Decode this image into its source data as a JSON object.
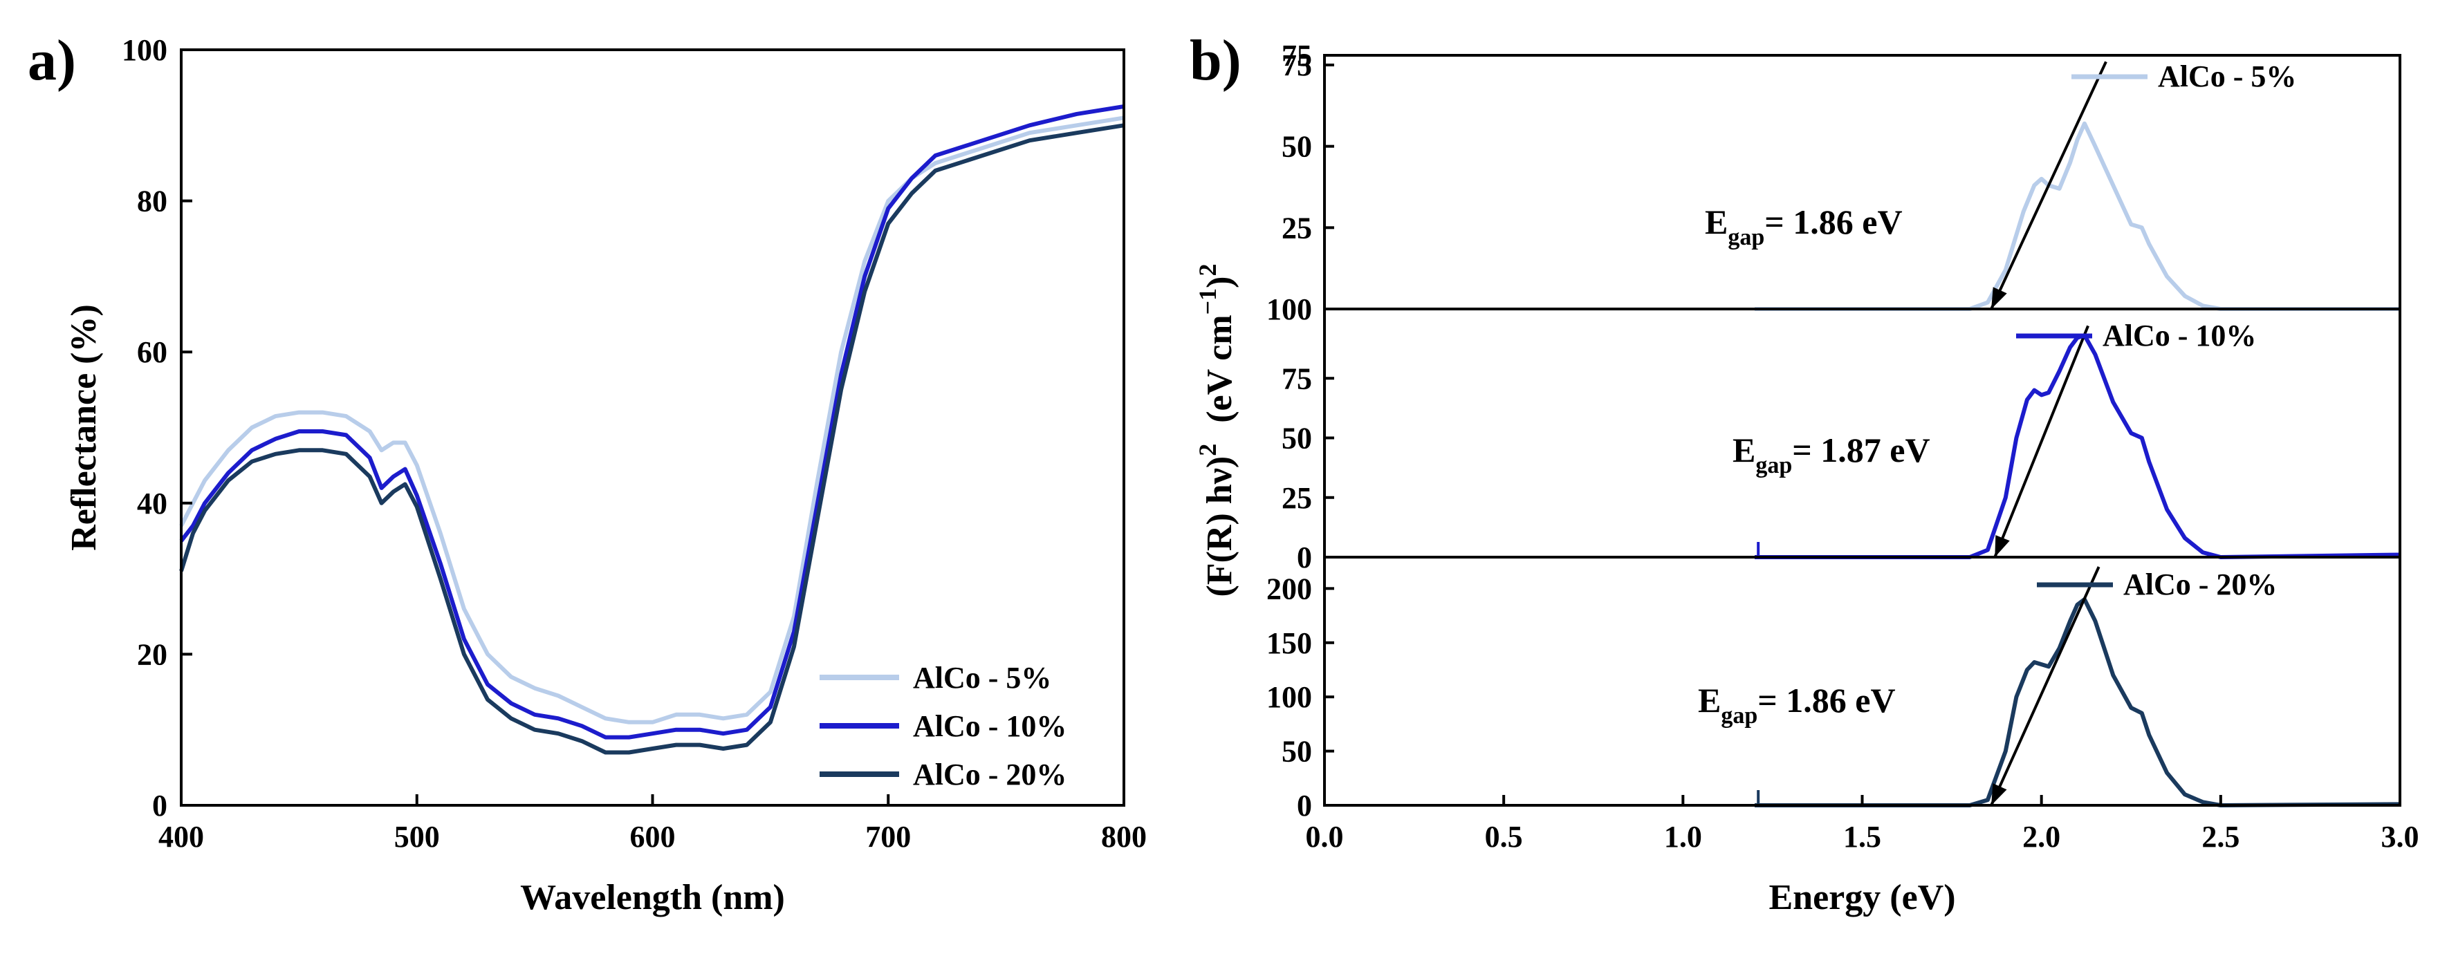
{
  "chart_data": [
    {
      "type": "line",
      "panel_label": "a)",
      "xlabel": "Wavelength (nm)",
      "ylabel": "Reflectance (%)",
      "xlim": [
        400,
        800
      ],
      "ylim": [
        0,
        100
      ],
      "xticks": [
        400,
        500,
        600,
        700,
        800
      ],
      "yticks": [
        0,
        20,
        40,
        60,
        80,
        100
      ],
      "legend_position": "bottom-right",
      "series": [
        {
          "name": "AlCo - 5%",
          "color": "#b8cdea",
          "x": [
            400,
            405,
            410,
            420,
            430,
            440,
            450,
            460,
            470,
            480,
            485,
            490,
            495,
            500,
            510,
            520,
            530,
            540,
            550,
            560,
            570,
            580,
            590,
            600,
            610,
            620,
            630,
            640,
            650,
            660,
            670,
            680,
            690,
            700,
            710,
            720,
            740,
            760,
            780,
            800
          ],
          "y": [
            37,
            40,
            43,
            47,
            50,
            51.5,
            52,
            52,
            51.5,
            49.5,
            47,
            48,
            48,
            45,
            36,
            26,
            20,
            17,
            15.5,
            14.5,
            13,
            11.5,
            11,
            11,
            12,
            12,
            11.5,
            12,
            15,
            25,
            43,
            60,
            72,
            80,
            83,
            85,
            87,
            89,
            90,
            91
          ]
        },
        {
          "name": "AlCo - 10%",
          "color": "#1c1ccc",
          "x": [
            400,
            405,
            410,
            420,
            430,
            440,
            450,
            460,
            470,
            480,
            485,
            490,
            495,
            500,
            510,
            520,
            530,
            540,
            550,
            560,
            570,
            580,
            590,
            600,
            610,
            620,
            630,
            640,
            650,
            660,
            670,
            680,
            690,
            700,
            710,
            720,
            740,
            760,
            780,
            800
          ],
          "y": [
            35,
            37,
            40,
            44,
            47,
            48.5,
            49.5,
            49.5,
            49,
            46,
            42,
            43.5,
            44.5,
            41,
            32,
            22,
            16,
            13.5,
            12,
            11.5,
            10.5,
            9,
            9,
            9.5,
            10,
            10,
            9.5,
            10,
            13,
            23,
            40,
            57,
            70,
            79,
            83,
            86,
            88,
            90,
            91.5,
            92.5
          ]
        },
        {
          "name": "AlCo - 20%",
          "color": "#1a3a5e",
          "x": [
            400,
            405,
            410,
            420,
            430,
            440,
            450,
            460,
            470,
            480,
            485,
            490,
            495,
            500,
            510,
            520,
            530,
            540,
            550,
            560,
            570,
            580,
            590,
            600,
            610,
            620,
            630,
            640,
            650,
            660,
            670,
            680,
            690,
            700,
            710,
            720,
            740,
            760,
            780,
            800
          ],
          "y": [
            31,
            36,
            39,
            43,
            45.5,
            46.5,
            47,
            47,
            46.5,
            43.5,
            40,
            41.5,
            42.5,
            39.5,
            30,
            20,
            14,
            11.5,
            10,
            9.5,
            8.5,
            7,
            7,
            7.5,
            8,
            8,
            7.5,
            8,
            11,
            21,
            38,
            55,
            68,
            77,
            81,
            84,
            86,
            88,
            89,
            90
          ]
        }
      ]
    },
    {
      "type": "line",
      "panel_label": "b)",
      "xlabel": "Energy (eV)",
      "ylabel_main": "(F(R) hν)",
      "ylabel_sup1": "2",
      "ylabel_units": "(eV cm",
      "ylabel_sup2": "−1",
      "ylabel_close": ")",
      "ylabel_sup3": "2",
      "xlim": [
        0,
        3
      ],
      "xticks": [
        "0.0",
        "0.5",
        "1.0",
        "1.5",
        "2.0",
        "2.5",
        "3.0"
      ],
      "subplots": [
        {
          "name": "AlCo - 5%",
          "color": "#b8cdea",
          "ylim": [
            0,
            75
          ],
          "yticks": [
            25,
            50,
            75
          ],
          "top_tick_label": "75",
          "extra_bottom_label": "100",
          "egap_prefix": "E",
          "egap_sub": "gap",
          "egap_value": "= 1.86 eV",
          "tangent": {
            "x1": 1.86,
            "y1": 0,
            "x2": 2.18,
            "y2": 76
          },
          "x": [
            1.2,
            1.5,
            1.8,
            1.85,
            1.9,
            1.95,
            1.98,
            2.0,
            2.02,
            2.05,
            2.08,
            2.1,
            2.12,
            2.15,
            2.2,
            2.25,
            2.28,
            2.3,
            2.35,
            2.4,
            2.45,
            2.5,
            3.0
          ],
          "y": [
            0,
            0,
            0,
            2,
            12,
            30,
            38,
            40,
            38,
            37,
            45,
            52,
            57,
            50,
            38,
            26,
            25,
            20,
            10,
            4,
            1,
            0,
            0
          ]
        },
        {
          "name": "AlCo - 10%",
          "color": "#1c1ccc",
          "ylim": [
            0,
            100
          ],
          "yticks": [
            0,
            25,
            50,
            75
          ],
          "egap_prefix": "E",
          "egap_sub": "gap",
          "egap_value": "= 1.87 eV",
          "tangent": {
            "x1": 1.87,
            "y1": 0,
            "x2": 2.13,
            "y2": 97
          },
          "spike_x": 1.21,
          "x": [
            1.2,
            1.5,
            1.8,
            1.85,
            1.9,
            1.93,
            1.96,
            1.98,
            2.0,
            2.02,
            2.05,
            2.08,
            2.1,
            2.12,
            2.15,
            2.2,
            2.25,
            2.28,
            2.3,
            2.35,
            2.4,
            2.45,
            2.5,
            3.0
          ],
          "y": [
            0,
            0,
            0,
            3,
            25,
            50,
            66,
            70,
            68,
            69,
            78,
            88,
            92,
            93,
            85,
            65,
            52,
            50,
            40,
            20,
            8,
            2,
            0,
            1
          ]
        },
        {
          "name": "AlCo - 20%",
          "color": "#1a3a5e",
          "ylim": [
            0,
            220
          ],
          "yticks": [
            0,
            50,
            100,
            150,
            200
          ],
          "egap_prefix": "E",
          "egap_sub": "gap",
          "egap_value": "= 1.86 eV",
          "tangent": {
            "x1": 1.86,
            "y1": 0,
            "x2": 2.16,
            "y2": 220
          },
          "spike_x": 1.21,
          "x": [
            1.2,
            1.5,
            1.8,
            1.85,
            1.9,
            1.93,
            1.96,
            1.98,
            2.0,
            2.02,
            2.05,
            2.08,
            2.1,
            2.12,
            2.15,
            2.2,
            2.25,
            2.28,
            2.3,
            2.35,
            2.4,
            2.45,
            2.5,
            3.0
          ],
          "y": [
            0,
            0,
            0,
            5,
            50,
            100,
            125,
            132,
            130,
            128,
            145,
            170,
            185,
            190,
            170,
            120,
            90,
            85,
            65,
            30,
            10,
            3,
            0,
            1
          ]
        }
      ]
    }
  ]
}
